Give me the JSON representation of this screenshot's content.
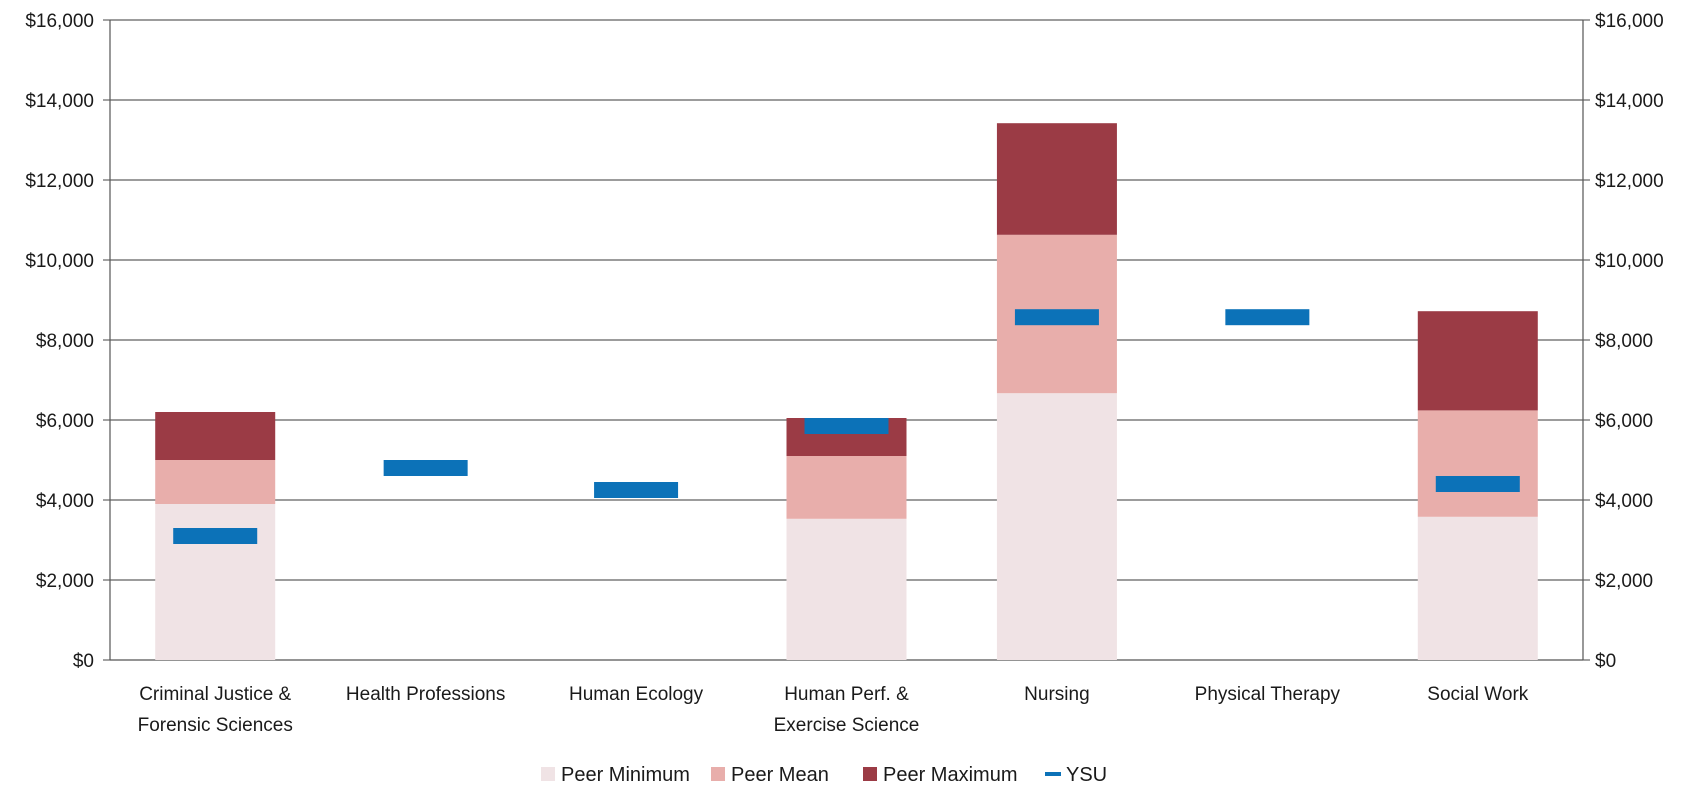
{
  "chart_data": {
    "type": "bar",
    "stacked": true,
    "categories": [
      [
        "Criminal Justice &",
        "Forensic Sciences"
      ],
      [
        "Health Professions"
      ],
      [
        "Human Ecology"
      ],
      [
        "Human Perf. &",
        "Exercise Science"
      ],
      [
        "Nursing"
      ],
      [
        "Physical Therapy"
      ],
      [
        "Social Work"
      ]
    ],
    "series": [
      {
        "name": "Peer Minimum",
        "color": "#f0e3e5",
        "values": [
          3900,
          null,
          null,
          3530,
          6670,
          null,
          3580
        ]
      },
      {
        "name": "Peer Mean",
        "color": "#e8aeab",
        "values": [
          1100,
          null,
          null,
          1570,
          3960,
          null,
          2660
        ]
      },
      {
        "name": "Peer Maximum",
        "color": "#9b3b45",
        "values": [
          1200,
          null,
          null,
          950,
          2790,
          null,
          2480
        ]
      }
    ],
    "marker_series": {
      "name": "YSU",
      "color": "#0c72b8",
      "values": [
        3100,
        4800,
        4250,
        5850,
        8570,
        8570,
        4400
      ]
    },
    "ylim": [
      0,
      16000
    ],
    "yticks": [
      0,
      2000,
      4000,
      6000,
      8000,
      10000,
      12000,
      14000,
      16000
    ],
    "ytick_labels": [
      "$0",
      "$2,000",
      "$4,000",
      "$6,000",
      "$8,000",
      "$10,000",
      "$12,000",
      "$14,000",
      "$16,000"
    ],
    "secondary_axis": true,
    "grid": true,
    "legend": "bottom"
  }
}
